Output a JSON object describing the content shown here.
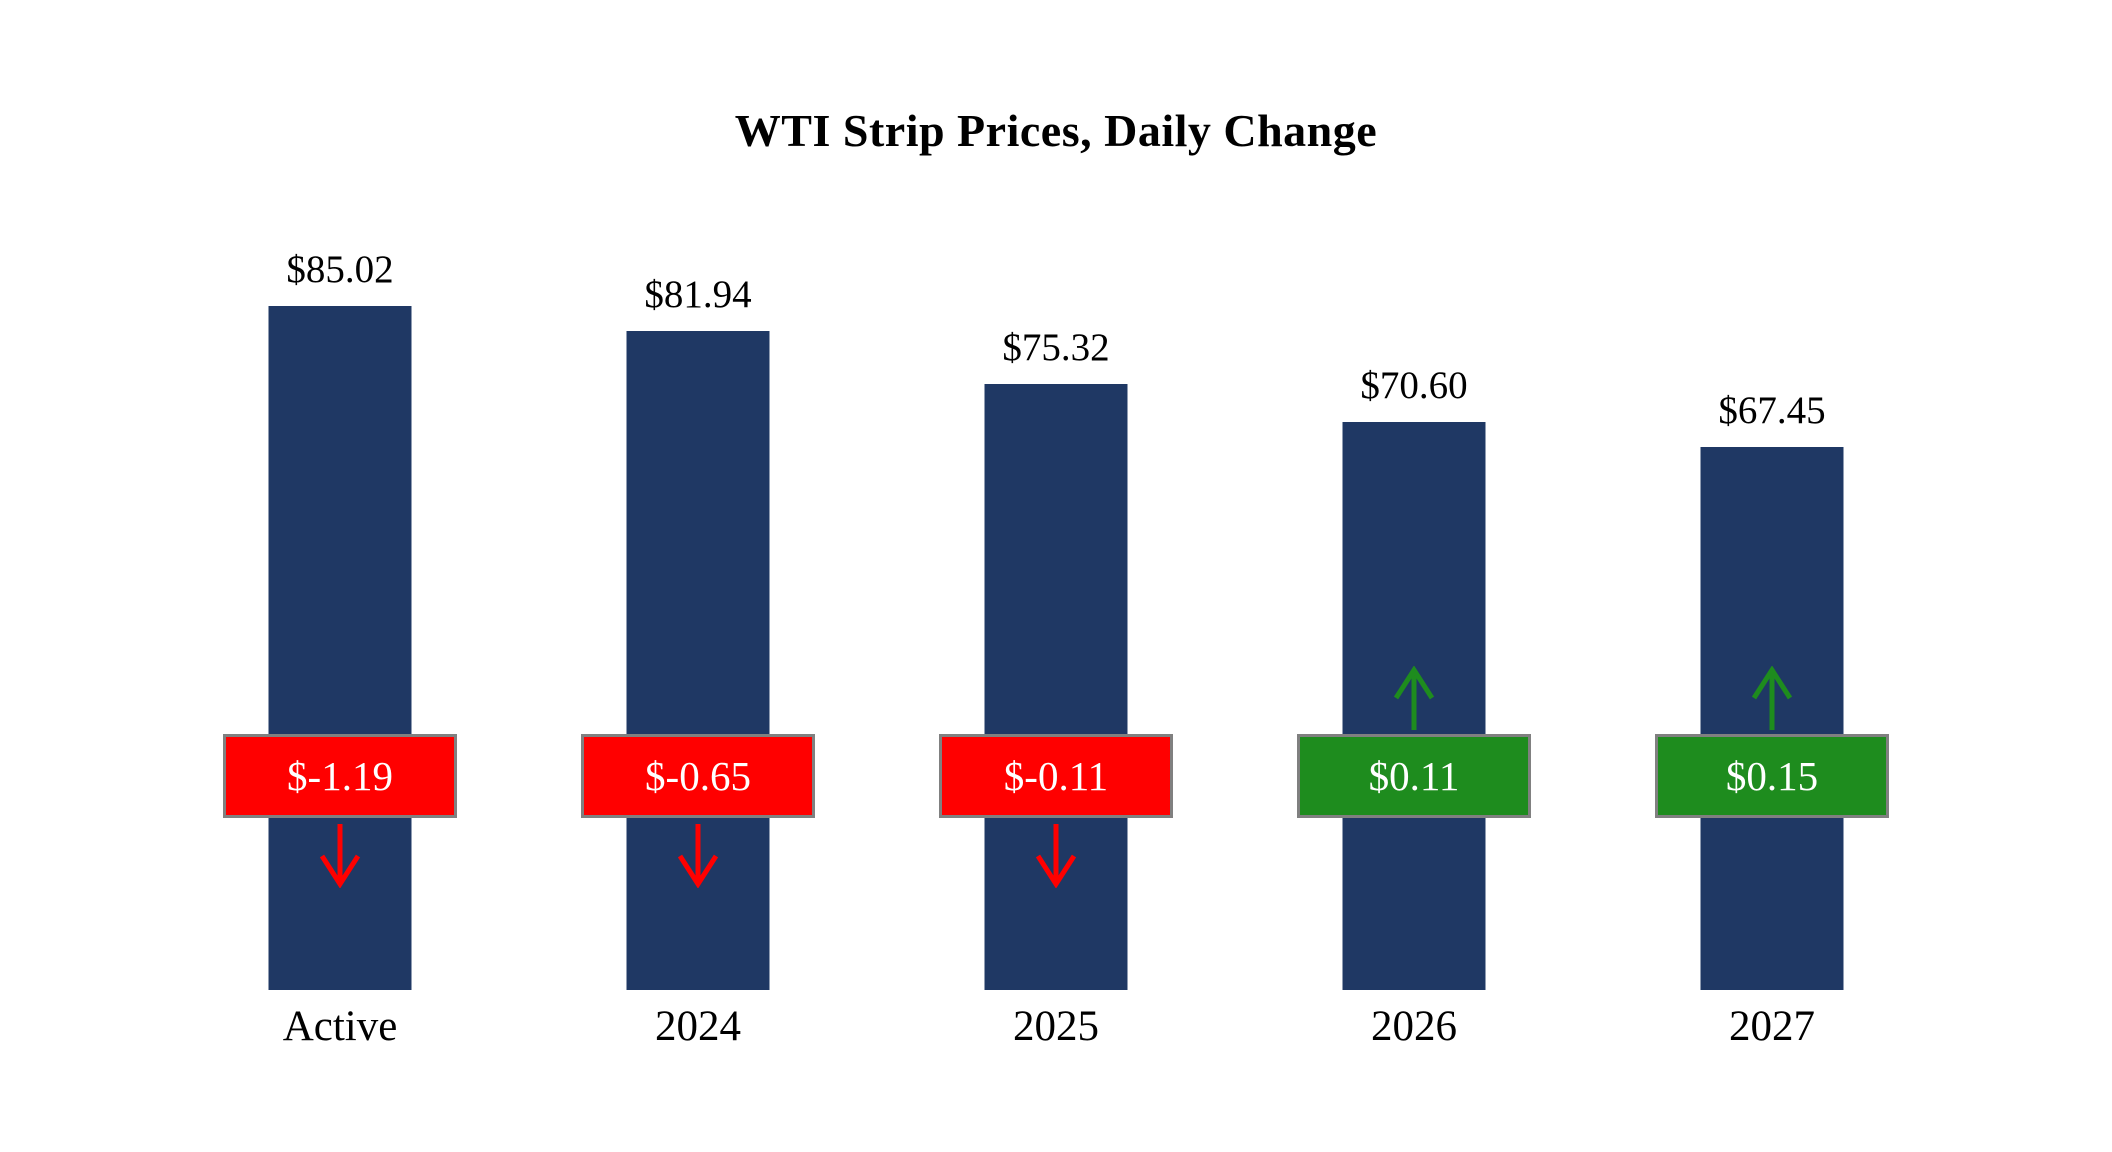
{
  "colors": {
    "bar": "#1F3864",
    "negative": "#FF0000",
    "positive": "#1E8C1E",
    "badge_border": "#808080",
    "badge_text": "#FFFFFF",
    "text": "#000000",
    "background": "#FFFFFF"
  },
  "chart_data": {
    "type": "bar",
    "title": "WTI Strip Prices, Daily Change",
    "categories": [
      "Active",
      "2024",
      "2025",
      "2026",
      "2027"
    ],
    "values": [
      85.02,
      81.94,
      75.32,
      70.6,
      67.45
    ],
    "value_labels": [
      "$85.02",
      "$81.94",
      "$75.32",
      "$70.60",
      "$67.45"
    ],
    "changes": [
      -1.19,
      -0.65,
      -0.11,
      0.11,
      0.15
    ],
    "change_labels": [
      "$-1.19",
      "$-0.65",
      "$-0.11",
      "$0.11",
      "$0.15"
    ],
    "change_directions": [
      "down",
      "down",
      "down",
      "up",
      "up"
    ],
    "xlabel": "",
    "ylabel": "",
    "ylim": [
      0,
      85.02
    ],
    "grid": false,
    "legend": false
  }
}
